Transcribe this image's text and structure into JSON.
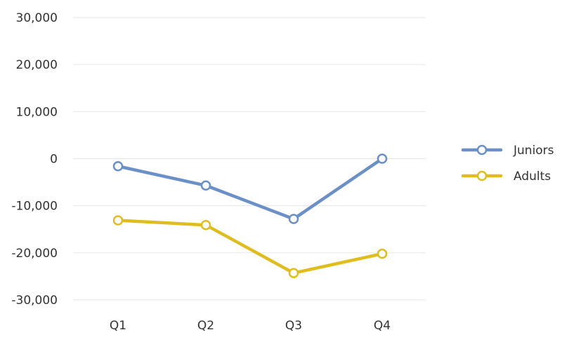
{
  "chart_data": {
    "type": "line",
    "categories": [
      "Q1",
      "Q2",
      "Q3",
      "Q4"
    ],
    "series": [
      {
        "name": "Juniors",
        "values": [
          -1600,
          -5700,
          -12800,
          0
        ],
        "color": "#6b8fc7"
      },
      {
        "name": "Adults",
        "values": [
          -13100,
          -14100,
          -24300,
          -20200
        ],
        "color": "#e0bd1e"
      }
    ],
    "ylim": [
      -30000,
      30000
    ],
    "yticks": [
      30000,
      20000,
      10000,
      0,
      -10000,
      -20000,
      -30000
    ],
    "ytick_labels": [
      "30,000",
      "20,000",
      "10,000",
      "0",
      "-10,000",
      "-20,000",
      "-30,000"
    ],
    "grid": true,
    "legend_position": "right"
  }
}
